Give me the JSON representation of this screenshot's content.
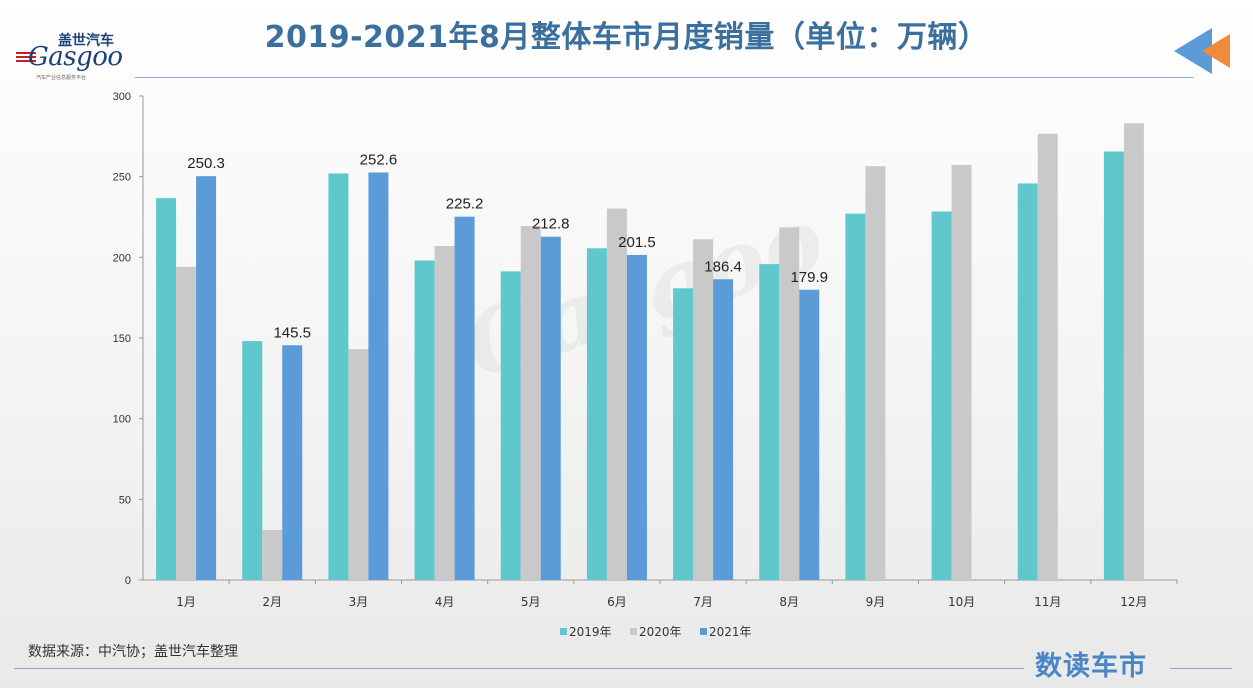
{
  "header": {
    "title": "2019-2021年8月整体车市月度销量（单位：万辆）"
  },
  "logo": {
    "cn_name": "盖世汽车",
    "en_name": "Gasgoo",
    "tagline": "汽车产业信息服务平台"
  },
  "footer": {
    "source": "数据来源：中汽协；盖世汽车整理",
    "brand": "数读车市"
  },
  "colors": {
    "s2019": "#5ec8cc",
    "s2020": "#c9c9c9",
    "s2021": "#5a9bd8",
    "title": "#3a6f9e",
    "axis": "#999999"
  },
  "chart_data": {
    "type": "bar",
    "title": "2019-2021年8月整体车市月度销量（单位：万辆）",
    "xlabel": "",
    "ylabel": "",
    "ylim": [
      0,
      300
    ],
    "yticks": [
      0,
      50,
      100,
      150,
      200,
      250,
      300
    ],
    "grid": false,
    "legend_position": "bottom",
    "categories": [
      "1月",
      "2月",
      "3月",
      "4月",
      "5月",
      "6月",
      "7月",
      "8月",
      "9月",
      "10月",
      "11月",
      "12月"
    ],
    "series": [
      {
        "name": "2019年",
        "values": [
          236.7,
          148.1,
          252.0,
          198.0,
          191.3,
          205.6,
          180.8,
          195.8,
          227.1,
          228.4,
          245.8,
          265.6
        ],
        "show_labels": false
      },
      {
        "name": "2020年",
        "values": [
          194.1,
          31.0,
          143.1,
          207.0,
          219.4,
          230.2,
          211.2,
          218.6,
          256.5,
          257.3,
          276.6,
          283.1
        ],
        "show_labels": false
      },
      {
        "name": "2021年",
        "values": [
          250.3,
          145.5,
          252.6,
          225.2,
          212.8,
          201.5,
          186.4,
          179.9,
          null,
          null,
          null,
          null
        ],
        "show_labels": true
      }
    ]
  }
}
